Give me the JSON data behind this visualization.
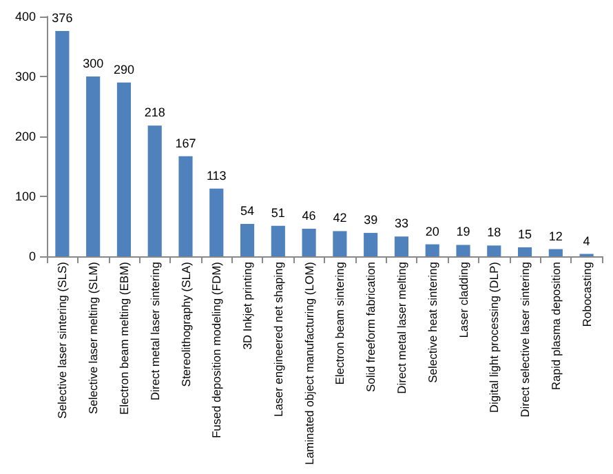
{
  "chart_data": {
    "type": "bar",
    "categories": [
      "Selective laser sintering (SLS)",
      "Selective laser melting (SLM)",
      "Electron beam melting (EBM)",
      "Direct metal laser sintering",
      "Stereolithography (SLA)",
      "Fused deposition modeling (FDM)",
      "3D Inkjet printing",
      "Laser engineered net shaping",
      "Laminated object manufacturing (LOM)",
      "Electron beam sintering",
      "Solid freeform fabrication",
      "Direct metal laser melting",
      "Selective heat sintering",
      "Laser cladding",
      "Digital light processing (DLP)",
      "Direct selective laser sintering",
      "Rapid plasma deposition",
      "Robocasting"
    ],
    "values": [
      376,
      300,
      290,
      218,
      167,
      113,
      54,
      51,
      46,
      42,
      39,
      33,
      20,
      19,
      18,
      15,
      12,
      4
    ],
    "color": "#4f81bd",
    "ylim": [
      0,
      400
    ],
    "yticks": [
      0,
      100,
      200,
      300,
      400
    ],
    "data_labels": true,
    "grid": false
  }
}
